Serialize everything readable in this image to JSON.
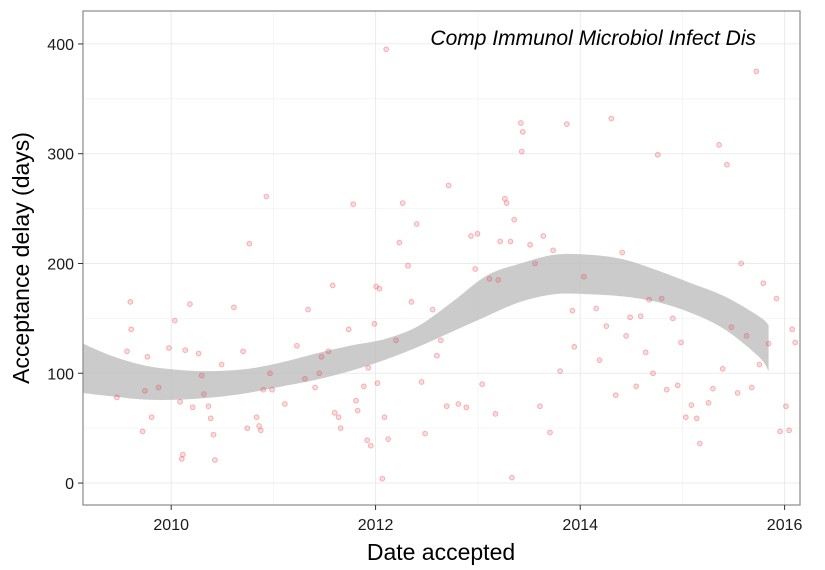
{
  "chart_data": {
    "type": "scatter",
    "title": "Comp Immunol Microbiol Infect Dis",
    "xlabel": "Date accepted",
    "ylabel": "Acceptance delay (days)",
    "xlim": [
      "2009-02-20",
      "2016-02-25"
    ],
    "ylim": [
      -20,
      430
    ],
    "x_ticks": [
      "2010",
      "2012",
      "2014",
      "2016"
    ],
    "y_ticks": [
      0,
      100,
      200,
      300,
      400
    ],
    "grid": true,
    "colors": {
      "points": "#e8474a",
      "band": "#bebebe",
      "panel_border": "#8a8a8a",
      "grid": "#ebebeb"
    },
    "series": [
      {
        "values": [
          [
            "2009-06-21",
            78
          ],
          [
            "2009-07-27",
            120
          ],
          [
            "2009-08-08",
            165
          ],
          [
            "2009-08-11",
            140
          ],
          [
            "2009-09-21",
            47
          ],
          [
            "2009-09-29",
            84
          ],
          [
            "2009-10-08",
            115
          ],
          [
            "2009-10-23",
            60
          ],
          [
            "2009-11-17",
            87
          ],
          [
            "2009-12-24",
            123
          ],
          [
            "2010-01-14",
            148
          ],
          [
            "2010-02-02",
            74
          ],
          [
            "2010-02-08",
            22
          ],
          [
            "2010-02-12",
            26
          ],
          [
            "2010-02-20",
            121
          ],
          [
            "2010-03-09",
            163
          ],
          [
            "2010-03-19",
            69
          ],
          [
            "2010-04-09",
            118
          ],
          [
            "2010-04-20",
            98
          ],
          [
            "2010-04-28",
            81
          ],
          [
            "2010-05-14",
            70
          ],
          [
            "2010-05-22",
            59
          ],
          [
            "2010-06-01",
            44
          ],
          [
            "2010-06-06",
            21
          ],
          [
            "2010-06-30",
            108
          ],
          [
            "2010-08-13",
            160
          ],
          [
            "2010-09-15",
            120
          ],
          [
            "2010-09-30",
            50
          ],
          [
            "2010-10-07",
            218
          ],
          [
            "2010-11-02",
            60
          ],
          [
            "2010-11-11",
            52
          ],
          [
            "2010-11-17",
            48
          ],
          [
            "2010-11-26",
            85
          ],
          [
            "2010-12-07",
            261
          ],
          [
            "2010-12-20",
            100
          ],
          [
            "2010-12-27",
            85
          ],
          [
            "2011-02-11",
            72
          ],
          [
            "2011-03-26",
            125
          ],
          [
            "2011-04-24",
            95
          ],
          [
            "2011-05-05",
            158
          ],
          [
            "2011-05-30",
            87
          ],
          [
            "2011-06-14",
            100
          ],
          [
            "2011-06-22",
            115
          ],
          [
            "2011-07-17",
            120
          ],
          [
            "2011-08-01",
            180
          ],
          [
            "2011-08-08",
            64
          ],
          [
            "2011-08-22",
            60
          ],
          [
            "2011-08-29",
            50
          ],
          [
            "2011-09-27",
            140
          ],
          [
            "2011-10-13",
            254
          ],
          [
            "2011-10-23",
            75
          ],
          [
            "2011-10-29",
            66
          ],
          [
            "2011-11-20",
            88
          ],
          [
            "2011-12-02",
            39
          ],
          [
            "2011-12-06",
            105
          ],
          [
            "2011-12-15",
            34
          ],
          [
            "2011-12-28",
            145
          ],
          [
            "2012-01-03",
            179
          ],
          [
            "2012-01-08",
            91
          ],
          [
            "2012-01-15",
            177
          ],
          [
            "2012-01-25",
            4
          ],
          [
            "2012-02-02",
            60
          ],
          [
            "2012-02-08",
            395
          ],
          [
            "2012-02-15",
            40
          ],
          [
            "2012-03-14",
            130
          ],
          [
            "2012-03-26",
            219
          ],
          [
            "2012-04-07",
            255
          ],
          [
            "2012-04-26",
            198
          ],
          [
            "2012-05-08",
            165
          ],
          [
            "2012-05-27",
            236
          ],
          [
            "2012-06-13",
            92
          ],
          [
            "2012-06-26",
            45
          ],
          [
            "2012-07-23",
            158
          ],
          [
            "2012-08-07",
            116
          ],
          [
            "2012-08-21",
            130
          ],
          [
            "2012-09-11",
            70
          ],
          [
            "2012-09-18",
            271
          ],
          [
            "2012-10-23",
            72
          ],
          [
            "2012-11-20",
            69
          ],
          [
            "2012-12-07",
            225
          ],
          [
            "2012-12-22",
            195
          ],
          [
            "2012-12-30",
            227
          ],
          [
            "2013-01-16",
            90
          ],
          [
            "2013-02-11",
            186
          ],
          [
            "2013-03-04",
            63
          ],
          [
            "2013-03-14",
            185
          ],
          [
            "2013-03-21",
            220
          ],
          [
            "2013-04-07",
            259
          ],
          [
            "2013-04-13",
            255
          ],
          [
            "2013-04-27",
            220
          ],
          [
            "2013-05-02",
            5
          ],
          [
            "2013-05-10",
            240
          ],
          [
            "2013-06-03",
            328
          ],
          [
            "2013-06-06",
            302
          ],
          [
            "2013-06-10",
            320
          ],
          [
            "2013-07-06",
            217
          ],
          [
            "2013-07-24",
            200
          ],
          [
            "2013-08-10",
            70
          ],
          [
            "2013-08-22",
            225
          ],
          [
            "2013-09-15",
            46
          ],
          [
            "2013-09-26",
            212
          ],
          [
            "2013-10-21",
            102
          ],
          [
            "2013-11-14",
            327
          ],
          [
            "2013-12-04",
            157
          ],
          [
            "2013-12-11",
            124
          ],
          [
            "2014-01-14",
            188
          ],
          [
            "2014-02-27",
            159
          ],
          [
            "2014-03-11",
            112
          ],
          [
            "2014-04-04",
            143
          ],
          [
            "2014-04-22",
            332
          ],
          [
            "2014-05-08",
            80
          ],
          [
            "2014-05-31",
            210
          ],
          [
            "2014-06-14",
            134
          ],
          [
            "2014-06-28",
            151
          ],
          [
            "2014-07-20",
            88
          ],
          [
            "2014-08-05",
            152
          ],
          [
            "2014-08-23",
            119
          ],
          [
            "2014-09-04",
            167
          ],
          [
            "2014-09-18",
            100
          ],
          [
            "2014-10-05",
            299
          ],
          [
            "2014-10-19",
            168
          ],
          [
            "2014-11-06",
            85
          ],
          [
            "2014-11-28",
            150
          ],
          [
            "2014-12-15",
            89
          ],
          [
            "2014-12-27",
            128
          ],
          [
            "2015-01-13",
            60
          ],
          [
            "2015-02-02",
            71
          ],
          [
            "2015-02-21",
            59
          ],
          [
            "2015-03-04",
            36
          ],
          [
            "2015-04-04",
            73
          ],
          [
            "2015-04-20",
            86
          ],
          [
            "2015-05-12",
            308
          ],
          [
            "2015-05-25",
            104
          ],
          [
            "2015-06-09",
            290
          ],
          [
            "2015-06-25",
            142
          ],
          [
            "2015-07-17",
            82
          ],
          [
            "2015-07-30",
            200
          ],
          [
            "2015-08-18",
            134
          ],
          [
            "2015-09-06",
            87
          ],
          [
            "2015-09-22",
            375
          ],
          [
            "2015-10-03",
            108
          ],
          [
            "2015-10-17",
            182
          ],
          [
            "2015-11-05",
            127
          ],
          [
            "2015-12-03",
            168
          ],
          [
            "2015-12-16",
            47
          ],
          [
            "2016-01-06",
            70
          ],
          [
            "2016-01-17",
            48
          ],
          [
            "2016-01-28",
            140
          ],
          [
            "2016-02-08",
            128
          ]
        ]
      }
    ],
    "smooth_band": {
      "x": [
        "2009-02-20",
        "2009-06-01",
        "2009-10-01",
        "2010-02-01",
        "2010-06-01",
        "2010-10-01",
        "2011-02-01",
        "2011-06-01",
        "2011-10-01",
        "2012-02-01",
        "2012-06-01",
        "2012-10-01",
        "2013-02-01",
        "2013-06-01",
        "2013-10-01",
        "2014-02-01",
        "2014-06-01",
        "2014-10-01",
        "2015-02-01",
        "2015-06-01",
        "2015-10-01",
        "2015-11-05"
      ],
      "upper": [
        127,
        116,
        107,
        103,
        102,
        104,
        110,
        118,
        125,
        131,
        143,
        165,
        189,
        200,
        208,
        208,
        204,
        194,
        182,
        170,
        152,
        144
      ],
      "lower": [
        82,
        79,
        76,
        76,
        78,
        82,
        88,
        94,
        102,
        112,
        124,
        138,
        152,
        165,
        172,
        172,
        170,
        165,
        155,
        140,
        115,
        102
      ]
    }
  }
}
